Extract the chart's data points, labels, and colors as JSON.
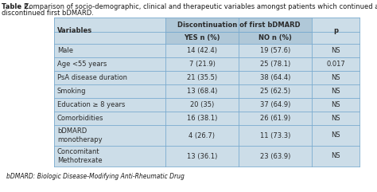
{
  "title_bold": "Table 2.",
  "title_rest": " Comparison of socio-demographic, clinical and therapeutic variables amongst patients which continued and\ndiscontinued first bDMARD.",
  "footnote": "bDMARD: Biologic Disease-Modifying Anti-Rheumatic Drug",
  "rows": [
    [
      "Male",
      "14 (42.4)",
      "19 (57.6)",
      "NS"
    ],
    [
      "Age <55 years",
      "7 (21.9)",
      "25 (78.1)",
      "0.017"
    ],
    [
      "PsA disease duration",
      "21 (35.5)",
      "38 (64.4)",
      "NS"
    ],
    [
      "Smoking",
      "13 (68.4)",
      "25 (62.5)",
      "NS"
    ],
    [
      "Education ≥ 8 years",
      "20 (35)",
      "37 (64.9)",
      "NS"
    ],
    [
      "Comorbidities",
      "16 (38.1)",
      "26 (61.9)",
      "NS"
    ],
    [
      "bDMARD\nmonotherapy",
      "4 (26.7)",
      "11 (73.3)",
      "NS"
    ],
    [
      "Concomitant\nMethotrexate",
      "13 (36.1)",
      "23 (63.9)",
      "NS"
    ]
  ],
  "table_bg": "#ccdde8",
  "header_merge_bg": "#b0c8d8",
  "border_color": "#7aabcf",
  "text_color": "#2a2a2a",
  "title_color": "#1a1a1a",
  "footnote_color": "#1a1a1a",
  "title_fontsize": 6.0,
  "cell_fontsize": 6.0,
  "footnote_fontsize": 5.5
}
